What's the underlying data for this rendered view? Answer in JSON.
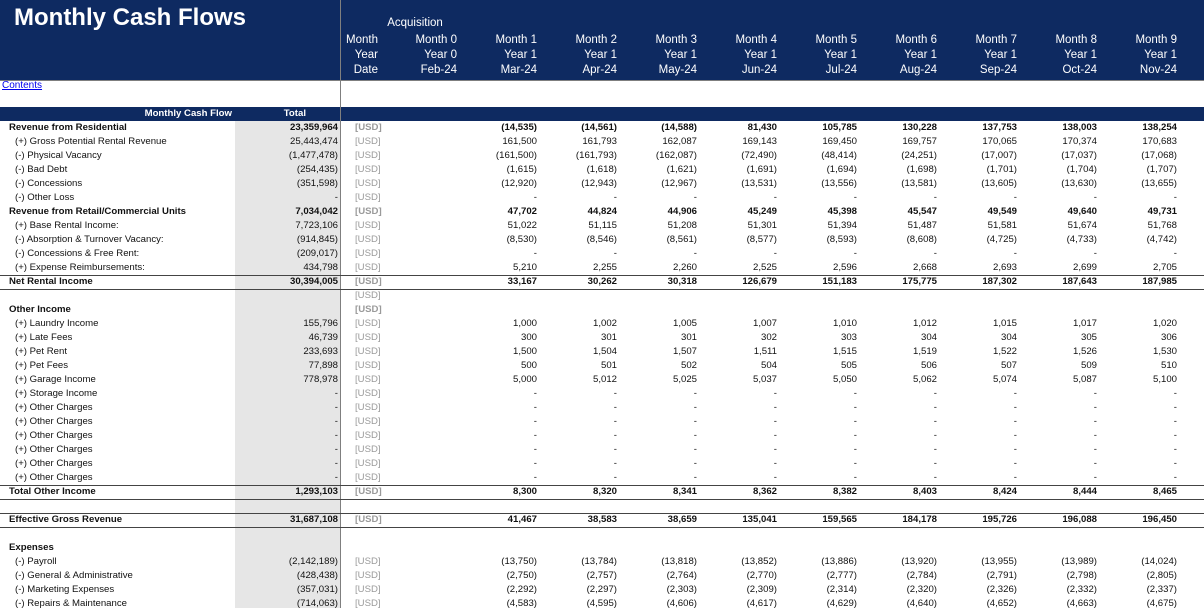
{
  "header": {
    "title": "Monthly Cash Flows",
    "acquisition": "Acquisition",
    "row_labels": [
      "Month",
      "Year",
      "Date"
    ],
    "columns": [
      {
        "month": "Month 0",
        "year": "Year 0",
        "date": "Feb-24"
      },
      {
        "month": "Month 1",
        "year": "Year 1",
        "date": "Mar-24"
      },
      {
        "month": "Month 2",
        "year": "Year 1",
        "date": "Apr-24"
      },
      {
        "month": "Month 3",
        "year": "Year 1",
        "date": "May-24"
      },
      {
        "month": "Month 4",
        "year": "Year 1",
        "date": "Jun-24"
      },
      {
        "month": "Month 5",
        "year": "Year 1",
        "date": "Jul-24"
      },
      {
        "month": "Month 6",
        "year": "Year 1",
        "date": "Aug-24"
      },
      {
        "month": "Month 7",
        "year": "Year 1",
        "date": "Sep-24"
      },
      {
        "month": "Month 8",
        "year": "Year 1",
        "date": "Oct-24"
      },
      {
        "month": "Month 9",
        "year": "Year 1",
        "date": "Nov-24"
      }
    ]
  },
  "contents_link": "Contents",
  "section": {
    "label": "Monthly Cash Flow",
    "total_header": "Total"
  },
  "rows": [
    {
      "label": "Revenue from Residential",
      "total": "23,359,964",
      "unit": "[USD]",
      "values": [
        "(14,535)",
        "(14,561)",
        "(14,588)",
        "81,430",
        "105,785",
        "130,228",
        "137,753",
        "138,003",
        "138,254"
      ]
    },
    {
      "label": "(+) Gross Potential Rental Revenue",
      "total": "25,443,474",
      "unit": "[USD]",
      "values": [
        "161,500",
        "161,793",
        "162,087",
        "169,143",
        "169,450",
        "169,757",
        "170,065",
        "170,374",
        "170,683"
      ]
    },
    {
      "label": "(-) Physical Vacancy",
      "total": "(1,477,478)",
      "unit": "[USD]",
      "values": [
        "(161,500)",
        "(161,793)",
        "(162,087)",
        "(72,490)",
        "(48,414)",
        "(24,251)",
        "(17,007)",
        "(17,037)",
        "(17,068)"
      ]
    },
    {
      "label": "(-) Bad Debt",
      "total": "(254,435)",
      "unit": "[USD]",
      "values": [
        "(1,615)",
        "(1,618)",
        "(1,621)",
        "(1,691)",
        "(1,694)",
        "(1,698)",
        "(1,701)",
        "(1,704)",
        "(1,707)"
      ]
    },
    {
      "label": "(-) Concessions",
      "total": "(351,598)",
      "unit": "[USD]",
      "values": [
        "(12,920)",
        "(12,943)",
        "(12,967)",
        "(13,531)",
        "(13,556)",
        "(13,581)",
        "(13,605)",
        "(13,630)",
        "(13,655)"
      ]
    },
    {
      "label": "(-) Other Loss",
      "total": "-",
      "unit": "[USD]",
      "values": [
        "-",
        "-",
        "-",
        "-",
        "-",
        "-",
        "-",
        "-",
        "-"
      ]
    },
    {
      "label": "Revenue from Retail/Commercial Units",
      "total": "7,034,042",
      "unit": "[USD]",
      "values": [
        "47,702",
        "44,824",
        "44,906",
        "45,249",
        "45,398",
        "45,547",
        "49,549",
        "49,640",
        "49,731"
      ]
    },
    {
      "label": "(+) Base Rental Income:",
      "total": "7,723,106",
      "unit": "[USD]",
      "values": [
        "51,022",
        "51,115",
        "51,208",
        "51,301",
        "51,394",
        "51,487",
        "51,581",
        "51,674",
        "51,768"
      ]
    },
    {
      "label": "(-) Absorption & Turnover Vacancy:",
      "total": "(914,845)",
      "unit": "[USD]",
      "values": [
        "(8,530)",
        "(8,546)",
        "(8,561)",
        "(8,577)",
        "(8,593)",
        "(8,608)",
        "(4,725)",
        "(4,733)",
        "(4,742)"
      ]
    },
    {
      "label": "(-) Concessions & Free Rent:",
      "total": "(209,017)",
      "unit": "[USD]",
      "values": [
        "-",
        "-",
        "-",
        "-",
        "-",
        "-",
        "-",
        "-",
        "-"
      ]
    },
    {
      "label": "(+) Expense Reimbursements:",
      "total": "434,798",
      "unit": "[USD]",
      "values": [
        "5,210",
        "2,255",
        "2,260",
        "2,525",
        "2,596",
        "2,668",
        "2,693",
        "2,699",
        "2,705"
      ]
    },
    {
      "label": "Net Rental Income",
      "total": "30,394,005",
      "unit": "[USD]",
      "values": [
        "33,167",
        "30,262",
        "30,318",
        "126,679",
        "151,183",
        "175,775",
        "187,302",
        "187,643",
        "187,985"
      ]
    },
    {
      "unit": "[USD]"
    },
    {
      "label": "Other Income",
      "unit": "[USD]"
    },
    {
      "label": "(+) Laundry Income",
      "total": "155,796",
      "unit": "[USD]",
      "values": [
        "1,000",
        "1,002",
        "1,005",
        "1,007",
        "1,010",
        "1,012",
        "1,015",
        "1,017",
        "1,020"
      ]
    },
    {
      "label": "(+) Late Fees",
      "total": "46,739",
      "unit": "[USD]",
      "values": [
        "300",
        "301",
        "301",
        "302",
        "303",
        "304",
        "304",
        "305",
        "306"
      ]
    },
    {
      "label": "(+) Pet Rent",
      "total": "233,693",
      "unit": "[USD]",
      "values": [
        "1,500",
        "1,504",
        "1,507",
        "1,511",
        "1,515",
        "1,519",
        "1,522",
        "1,526",
        "1,530"
      ]
    },
    {
      "label": "(+) Pet Fees",
      "total": "77,898",
      "unit": "[USD]",
      "values": [
        "500",
        "501",
        "502",
        "504",
        "505",
        "506",
        "507",
        "509",
        "510"
      ]
    },
    {
      "label": "(+) Garage Income",
      "total": "778,978",
      "unit": "[USD]",
      "values": [
        "5,000",
        "5,012",
        "5,025",
        "5,037",
        "5,050",
        "5,062",
        "5,074",
        "5,087",
        "5,100"
      ]
    },
    {
      "label": "(+) Storage Income",
      "total": "-",
      "unit": "[USD]",
      "values": [
        "-",
        "-",
        "-",
        "-",
        "-",
        "-",
        "-",
        "-",
        "-"
      ]
    },
    {
      "label": "(+) Other Charges",
      "total": "-",
      "unit": "[USD]",
      "values": [
        "-",
        "-",
        "-",
        "-",
        "-",
        "-",
        "-",
        "-",
        "-"
      ]
    },
    {
      "label": "(+) Other Charges",
      "total": "-",
      "unit": "[USD]",
      "values": [
        "-",
        "-",
        "-",
        "-",
        "-",
        "-",
        "-",
        "-",
        "-"
      ]
    },
    {
      "label": "(+) Other Charges",
      "total": "-",
      "unit": "[USD]",
      "values": [
        "-",
        "-",
        "-",
        "-",
        "-",
        "-",
        "-",
        "-",
        "-"
      ]
    },
    {
      "label": "(+) Other Charges",
      "total": "-",
      "unit": "[USD]",
      "values": [
        "-",
        "-",
        "-",
        "-",
        "-",
        "-",
        "-",
        "-",
        "-"
      ]
    },
    {
      "label": "(+) Other Charges",
      "total": "-",
      "unit": "[USD]",
      "values": [
        "-",
        "-",
        "-",
        "-",
        "-",
        "-",
        "-",
        "-",
        "-"
      ]
    },
    {
      "label": "(+) Other Charges",
      "total": "-",
      "unit": "[USD]",
      "values": [
        "-",
        "-",
        "-",
        "-",
        "-",
        "-",
        "-",
        "-",
        "-"
      ]
    },
    {
      "label": "Total Other Income",
      "total": "1,293,103",
      "unit": "[USD]",
      "values": [
        "8,300",
        "8,320",
        "8,341",
        "8,362",
        "8,382",
        "8,403",
        "8,424",
        "8,444",
        "8,465"
      ]
    },
    {
      "label": "Effective Gross Revenue",
      "total": "31,687,108",
      "unit": "[USD]",
      "values": [
        "41,467",
        "38,583",
        "38,659",
        "135,041",
        "159,565",
        "184,178",
        "195,726",
        "196,088",
        "196,450"
      ]
    },
    {
      "label": "Expenses"
    },
    {
      "label": "(-) Payroll",
      "total": "(2,142,189)",
      "unit": "[USD]",
      "values": [
        "(13,750)",
        "(13,784)",
        "(13,818)",
        "(13,852)",
        "(13,886)",
        "(13,920)",
        "(13,955)",
        "(13,989)",
        "(14,024)"
      ]
    },
    {
      "label": "(-) General & Administrative",
      "total": "(428,438)",
      "unit": "[USD]",
      "values": [
        "(2,750)",
        "(2,757)",
        "(2,764)",
        "(2,770)",
        "(2,777)",
        "(2,784)",
        "(2,791)",
        "(2,798)",
        "(2,805)"
      ]
    },
    {
      "label": "(-) Marketing Expenses",
      "total": "(357,031)",
      "unit": "[USD]",
      "values": [
        "(2,292)",
        "(2,297)",
        "(2,303)",
        "(2,309)",
        "(2,314)",
        "(2,320)",
        "(2,326)",
        "(2,332)",
        "(2,337)"
      ]
    },
    {
      "label": "(-) Repairs & Maintenance",
      "total": "(714,063)",
      "unit": "[USD]",
      "values": [
        "(4,583)",
        "(4,595)",
        "(4,606)",
        "(4,617)",
        "(4,629)",
        "(4,640)",
        "(4,652)",
        "(4,663)",
        "(4,675)"
      ]
    }
  ]
}
